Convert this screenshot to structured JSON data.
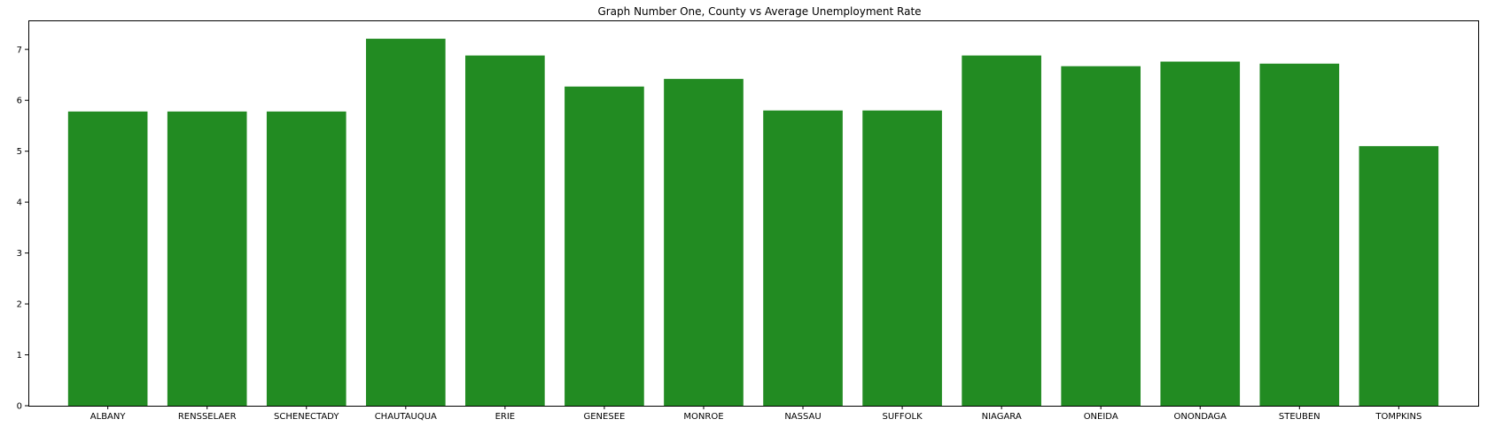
{
  "chart_data": {
    "type": "bar",
    "title": "Graph Number One, County vs Average Unemployment Rate",
    "xlabel": "",
    "ylabel": "",
    "categories": [
      "ALBANY",
      "RENSSELAER",
      "SCHENECTADY",
      "CHAUTAUQUA",
      "ERIE",
      "GENESEE",
      "MONROE",
      "NASSAU",
      "SUFFOLK",
      "NIAGARA",
      "ONEIDA",
      "ONONDAGA",
      "STEUBEN",
      "TOMPKINS"
    ],
    "values": [
      5.78,
      5.78,
      5.78,
      7.21,
      6.88,
      6.27,
      6.42,
      5.8,
      5.8,
      6.88,
      6.67,
      6.76,
      6.72,
      5.1
    ],
    "ylim": [
      0,
      7.57
    ],
    "yticks": [
      0,
      1,
      2,
      3,
      4,
      5,
      6,
      7
    ],
    "bar_color": "#228b22",
    "grid": false,
    "legend": "none"
  }
}
